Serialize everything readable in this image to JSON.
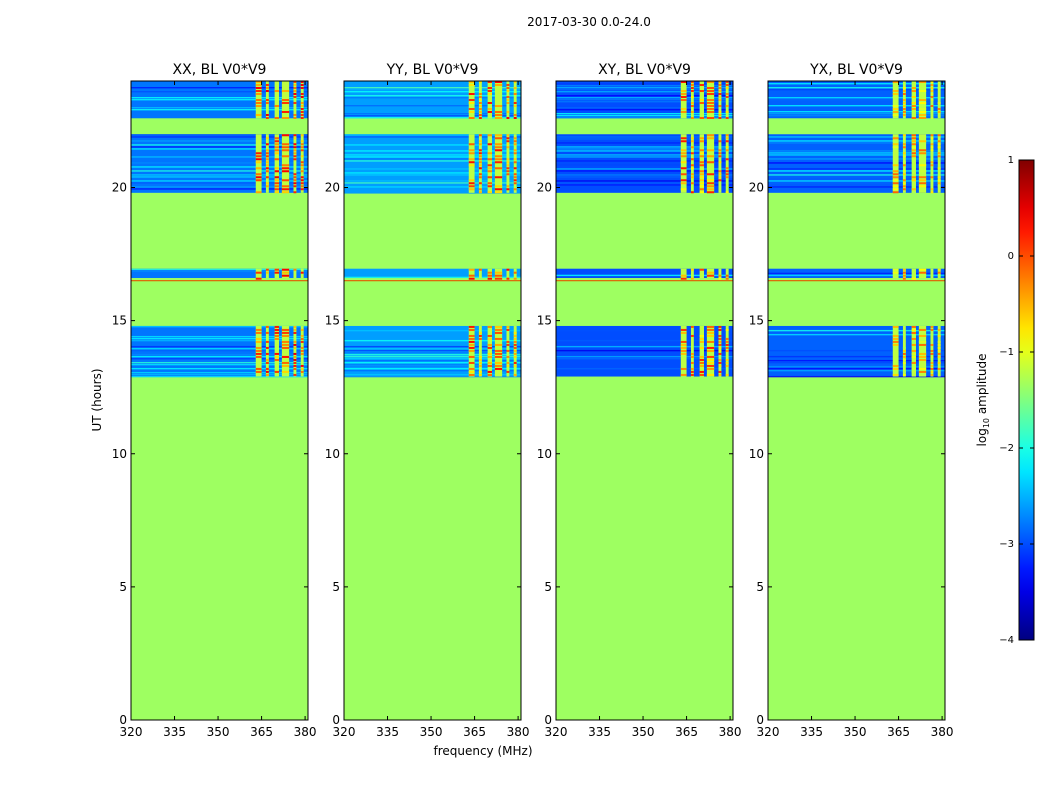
{
  "chart_data": {
    "type": "heatmap",
    "suptitle": "2017-03-30 0.0-24.0",
    "xlabel": "frequency (MHz)",
    "ylabel": "UT (hours)",
    "xlim": [
      320,
      381
    ],
    "ylim": [
      0,
      24
    ],
    "xticks": [
      320,
      335,
      350,
      365,
      380
    ],
    "yticks": [
      0,
      5,
      10,
      15,
      20
    ],
    "colormap": "jet",
    "colorbar": {
      "label": "log10 amplitude",
      "label_base": "log",
      "label_sub": "10",
      "label_rest": " amplitude",
      "range": [
        -4,
        1
      ],
      "ticks": [
        -4,
        -3,
        -2,
        -1,
        0,
        1
      ],
      "tick_labels": [
        "−4",
        "−3",
        "−2",
        "−1",
        "0",
        "1"
      ]
    },
    "background_value": -1.35,
    "rfi_bands_mhz": [
      [
        363,
        365
      ],
      [
        366.5,
        367.5
      ],
      [
        369.5,
        371
      ],
      [
        372,
        374.5
      ],
      [
        376,
        377
      ],
      [
        378.5,
        379.5
      ]
    ],
    "panels": [
      {
        "title": "XX, BL V0*V9",
        "noise_blocks_ut": [
          [
            12.9,
            14.8
          ],
          [
            16.6,
            16.95
          ],
          [
            19.8,
            22.0
          ],
          [
            22.6,
            24.0
          ]
        ],
        "noise_level": -2.8,
        "rfi_level": -0.1,
        "lines_ut": [
          16.5
        ]
      },
      {
        "title": "YY, BL V0*V9",
        "noise_blocks_ut": [
          [
            12.9,
            14.8
          ],
          [
            16.6,
            16.95
          ],
          [
            19.8,
            22.0
          ],
          [
            22.6,
            24.0
          ]
        ],
        "noise_level": -2.6,
        "rfi_level": -0.2,
        "lines_ut": [
          16.5
        ]
      },
      {
        "title": "XY, BL V0*V9",
        "noise_blocks_ut": [
          [
            12.9,
            14.8
          ],
          [
            16.6,
            16.95
          ],
          [
            19.8,
            22.0
          ],
          [
            22.6,
            24.0
          ]
        ],
        "noise_level": -3.0,
        "rfi_level": -0.3,
        "lines_ut": [
          16.5
        ]
      },
      {
        "title": "YX, BL V0*V9",
        "noise_blocks_ut": [
          [
            12.9,
            14.8
          ],
          [
            16.6,
            16.95
          ],
          [
            19.8,
            22.0
          ],
          [
            22.6,
            24.0
          ]
        ],
        "noise_level": -2.9,
        "rfi_level": -0.7,
        "lines_ut": [
          16.5
        ]
      }
    ]
  }
}
